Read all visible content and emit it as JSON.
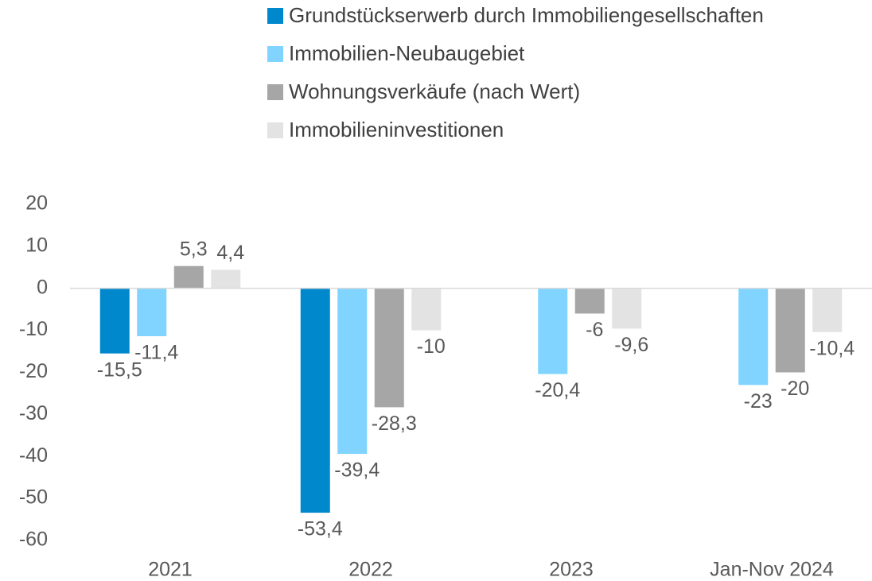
{
  "chart_data": {
    "type": "bar",
    "categories": [
      "2021",
      "2022",
      "2023",
      "Jan-Nov 2024"
    ],
    "series": [
      {
        "name": "Grundstückserwerb durch Immobiliengesellschaften",
        "color": "#0088cc",
        "values": [
          -15.5,
          -53.4,
          null,
          null
        ],
        "value_labels": [
          "-15,5",
          "-53,4",
          null,
          null
        ]
      },
      {
        "name": "Immobilien-Neubaugebiet",
        "color": "#80d4ff",
        "values": [
          -11.4,
          -39.4,
          -20.4,
          -23
        ],
        "value_labels": [
          "-11,4",
          "-39,4",
          "-20,4",
          "-23"
        ]
      },
      {
        "name": "Wohnungsverkäufe (nach Wert)",
        "color": "#a6a6a6",
        "values": [
          5.3,
          -28.3,
          -6,
          -20
        ],
        "value_labels": [
          "5,3",
          "-28,3",
          "-6",
          "-20"
        ]
      },
      {
        "name": "Immobilieninvestitionen",
        "color": "#e3e3e3",
        "values": [
          4.4,
          -10,
          -9.6,
          -10.4
        ],
        "value_labels": [
          "4,4",
          "-10",
          "-9,6",
          "-10,4"
        ]
      }
    ],
    "ylim": [
      -60,
      20
    ],
    "yticks": [
      20,
      10,
      0,
      -10,
      -20,
      -30,
      -40,
      -50,
      -60
    ],
    "legend": "top"
  }
}
